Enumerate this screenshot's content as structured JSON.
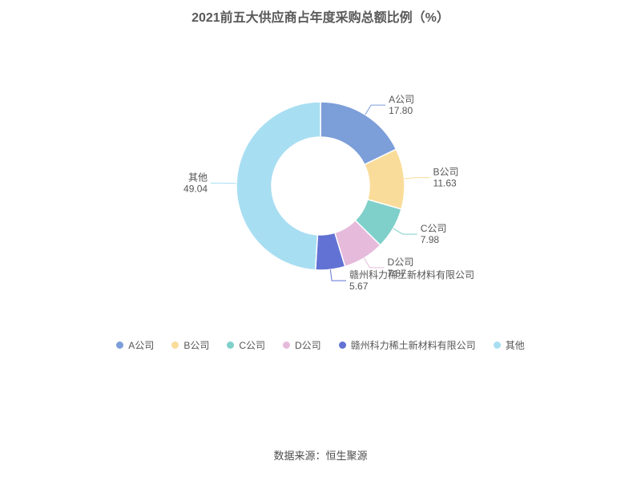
{
  "chart_data": {
    "type": "pie",
    "subtype": "donut",
    "title": "2021前五大供应商占年度采购总额比例（%）",
    "labels": [
      "A公司",
      "B公司",
      "C公司",
      "D公司",
      "赣州科力稀土新材料有限公司",
      "其他"
    ],
    "values": [
      17.8,
      11.63,
      7.98,
      7.87,
      5.67,
      49.04
    ],
    "value_labels": [
      "17.80",
      "11.63",
      "7.98",
      "7.87",
      "5.67",
      "49.04"
    ],
    "colors": [
      "#7c9ed9",
      "#fadc9a",
      "#7fd0ca",
      "#e5badb",
      "#6272d4",
      "#a8def2"
    ],
    "start_angle_deg": 0,
    "direction": "clockwise",
    "legend_position": "bottom",
    "background_color": "#ffffff"
  },
  "footer": {
    "source": "数据来源：恒生聚源"
  }
}
